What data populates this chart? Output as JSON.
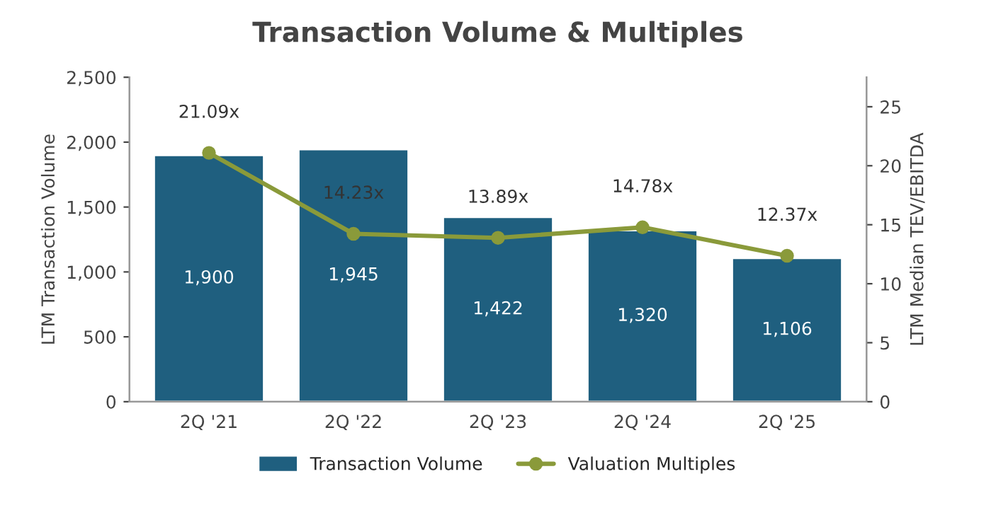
{
  "chart_data": {
    "type": "bar",
    "title": "Transaction Volume & Multiples",
    "ylabel": "LTM Transaction Volume",
    "y2label": "LTM Median TEV/EBITDA",
    "categories": [
      "2Q '21",
      "2Q '22",
      "2Q '23",
      "2Q '24",
      "2Q '25"
    ],
    "series": [
      {
        "name": "Transaction Volume",
        "color": "#1f5f7f",
        "values": [
          1900,
          1945,
          1422,
          1320,
          1106
        ],
        "value_labels": [
          "1,900",
          "1,945",
          "1,422",
          "1,320",
          "1,106"
        ]
      },
      {
        "name": "Valuation Multiples",
        "type": "line",
        "axis": "y2",
        "color": "#8a9a3a",
        "marker": "circle",
        "values": [
          21.09,
          14.23,
          13.89,
          14.78,
          12.37
        ],
        "value_labels": [
          "21.09x",
          "14.23x",
          "13.89x",
          "14.78x",
          "12.37x"
        ]
      }
    ],
    "ylim": [
      0,
      2500
    ],
    "yticks": [
      0,
      500,
      {
        "value": 1000,
        "label": "1,000"
      },
      {
        "value": 1500,
        "label": "1,500"
      },
      {
        "value": 2000,
        "label": "2,000"
      },
      {
        "value": 2500,
        "label": "2,500"
      }
    ],
    "y2lim": [
      0,
      27.5
    ],
    "y2ticks": [
      0,
      5,
      10,
      15,
      20,
      25
    ],
    "grid": false,
    "legend": "bottom"
  }
}
